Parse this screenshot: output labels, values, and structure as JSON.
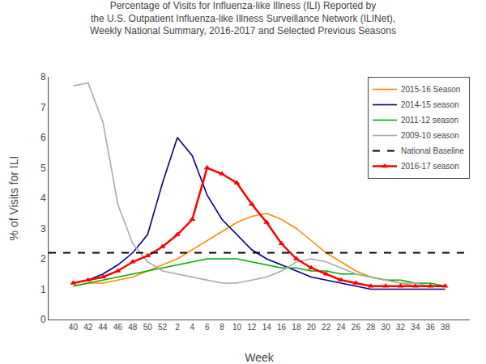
{
  "chart_data": {
    "type": "line",
    "title": "Percentage of Visits for Influenza-like Illness (ILI) Reported by\nthe U.S. Outpatient Influenza-like Illness Surveillance Network (ILINet),\nWeekly National Summary, 2016-2017 and Selected Previous Seasons",
    "x_label": "Week",
    "y_label": "% of Visits for ILI",
    "categories": [
      "40",
      "42",
      "44",
      "46",
      "48",
      "50",
      "52",
      "2",
      "4",
      "6",
      "8",
      "10",
      "12",
      "14",
      "16",
      "18",
      "20",
      "22",
      "24",
      "26",
      "28",
      "30",
      "32",
      "34",
      "36",
      "38"
    ],
    "ylim": [
      0,
      8
    ],
    "yticks": [
      0,
      1,
      2,
      3,
      4,
      5,
      6,
      7,
      8
    ],
    "grid": false,
    "legend": "upper right",
    "series": [
      {
        "name": "2015-16 Season",
        "color": "#FF8C00",
        "values": [
          1.1,
          1.2,
          1.2,
          1.3,
          1.4,
          1.6,
          1.8,
          2.0,
          2.3,
          2.6,
          2.9,
          3.2,
          3.4,
          3.5,
          3.3,
          3.0,
          2.6,
          2.2,
          1.9,
          1.6,
          1.4,
          1.3,
          1.2,
          1.1,
          1.1,
          1.1
        ]
      },
      {
        "name": "2014-15 season",
        "color": "#00008B",
        "values": [
          1.2,
          1.3,
          1.5,
          1.8,
          2.2,
          2.8,
          4.5,
          6.0,
          5.4,
          4.1,
          3.3,
          2.8,
          2.3,
          2.0,
          1.8,
          1.6,
          1.4,
          1.3,
          1.2,
          1.1,
          1.0,
          1.0,
          1.0,
          1.0,
          1.0,
          1.0
        ]
      },
      {
        "name": "2011-12 season",
        "color": "#00AA00",
        "values": [
          1.1,
          1.2,
          1.3,
          1.4,
          1.5,
          1.6,
          1.7,
          1.8,
          1.9,
          2.0,
          2.0,
          2.0,
          1.9,
          1.8,
          1.7,
          1.7,
          1.6,
          1.6,
          1.5,
          1.5,
          1.4,
          1.3,
          1.3,
          1.2,
          1.2,
          1.1
        ]
      },
      {
        "name": "2009-10 season",
        "color": "#AAAAAA",
        "values": [
          7.7,
          7.8,
          6.5,
          3.8,
          2.5,
          1.9,
          1.6,
          1.5,
          1.4,
          1.3,
          1.2,
          1.2,
          1.3,
          1.4,
          1.6,
          1.9,
          2.0,
          1.9,
          1.7,
          1.5,
          1.4,
          1.3,
          1.2,
          1.2,
          1.1,
          1.1
        ]
      },
      {
        "name": "National Baseline",
        "type": "hline",
        "color": "#000000",
        "line_style": "dashed",
        "value": 2.2
      },
      {
        "name": "2016-17 season",
        "color": "#FF0000",
        "marker": "triangle-up",
        "values": [
          1.2,
          1.3,
          1.4,
          1.6,
          1.9,
          2.1,
          2.4,
          2.8,
          3.3,
          5.0,
          4.8,
          4.5,
          3.8,
          3.2,
          2.5,
          2.0,
          1.7,
          1.5,
          1.3,
          1.2,
          1.1,
          1.1,
          1.1,
          1.1,
          1.1,
          1.1
        ]
      }
    ]
  }
}
